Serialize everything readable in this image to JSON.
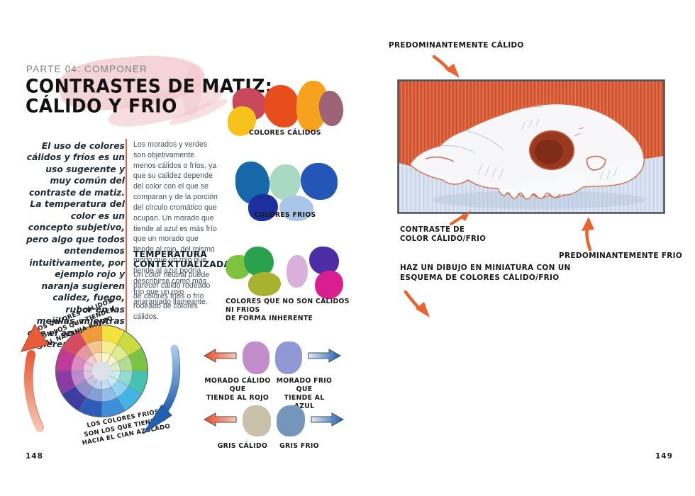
{
  "left_page": {
    "page_number": "148",
    "kicker": "PARTE 04: COMPONER",
    "title_line1": "CONTRASTES DE MATIZ:",
    "title_line2": "CÁLIDO Y FRIO",
    "intro": "El uso de colores cálidos y fríos es un uso sugerente y muy común del contraste de matiz. La temperatura del color es un concepto subjetivo, pero algo que todos entendemos intuitivamente, por ejemplo rojo y naranja sugieren calidez, fuego, rubor en las mejillas, mientras que el azul y el cian sugieren agua fría y hielo glacial.",
    "body_paragraph": "Los morados y verdes son objetivamente menos cálidos o fríos, ya que su calidez depende del color con el que se comparan y de la porción del círculo cromático que ocupan. Un morado que tiende al azul es más frío que un morado que tiende al rojo, del mismo modo que un rojo que tiende al azul podría describirse como más frío que un rojo anaranjado llameante.",
    "subheading_line1": "TEMPERATURA",
    "subheading_line2": "CONTEXTUALIZADA",
    "subbody": "Un color neutral puede parecer cálido rodeado de colores fríos o frío rodeado de colores cálidos.",
    "warm_group": {
      "label": "COLORES CÁLIDOS",
      "colors": [
        "#c9485b",
        "#f6c21c",
        "#e84e1c",
        "#f6a21c",
        "#9c6377"
      ]
    },
    "cool_group": {
      "label": "COLORES FRIOS",
      "colors": [
        "#1668a8",
        "#a9d9c2",
        "#2456b8",
        "#1b2f9e",
        "#abc5e8"
      ]
    },
    "neutral_group": {
      "label_line1": "COLORES QUE NO SON CÁLIDOS NI FRIOS",
      "label_line2": "DE FORMA INHERENTE",
      "green_colors": [
        "#7dc33f",
        "#2aa14c",
        "#a8b22e"
      ],
      "purple_colors": [
        "#d9b0d9",
        "#4b2da5",
        "#d81f90"
      ]
    },
    "wheel": {
      "segments": [
        "#f3e13c",
        "#cbdb40",
        "#7cc444",
        "#46c1b2",
        "#43b4e4",
        "#3e8fd8",
        "#2d5cb8",
        "#3f3da2",
        "#8c3aa4",
        "#c03a96",
        "#d84a5f",
        "#f09a3c"
      ],
      "center_color": "#dde2e9",
      "warm_note_line1": "LOS COLORES CÁLIDOS",
      "warm_note_line2": "SON LOS QUE TIENDEN",
      "warm_note_line3": "AL NARANJA ROJIZO",
      "cool_note_line1": "LOS COLORES FRIOS",
      "cool_note_line2": "SON LOS QUE TIENDEN",
      "cool_note_line3": "HACIA EL CIAN AZULADO"
    },
    "purple_compare": {
      "warm_label_line1": "MORADO CÁLIDO QUE",
      "warm_label_line2": "TIENDE AL ROJO",
      "cool_label_line1": "MORADO FRIO QUE",
      "cool_label_line2": "TIENDE AL AZUL",
      "warm_color": "#c18dca",
      "cool_color": "#9099d6"
    },
    "gray_compare": {
      "warm_label": "GRIS CÁLIDO",
      "cool_label": "GRIS FRIO",
      "warm_color": "#c9c0aa",
      "cool_color": "#7496ba"
    }
  },
  "right_page": {
    "page_number": "149",
    "annotation_warm": "PREDOMINANTEMENTE CÁLIDO",
    "annotation_contrast_line1": "CONTRASTE DE",
    "annotation_contrast_line2": "COLOR CÁLIDO/FRIO",
    "annotation_cool": "PREDOMINANTEMENTE FRIO",
    "annotation_task_line1": "HAZ UN DIBUJO EN MINIATURA CON UN",
    "annotation_task_line2": "ESQUEMA DE COLORES CÁLIDO/FRIO"
  },
  "palette": {
    "accent_orange": "#e8633c",
    "splash_pink": "#f2c6cb",
    "artwork_red": "#d75a36",
    "artwork_blue": "#d6e0ef"
  }
}
